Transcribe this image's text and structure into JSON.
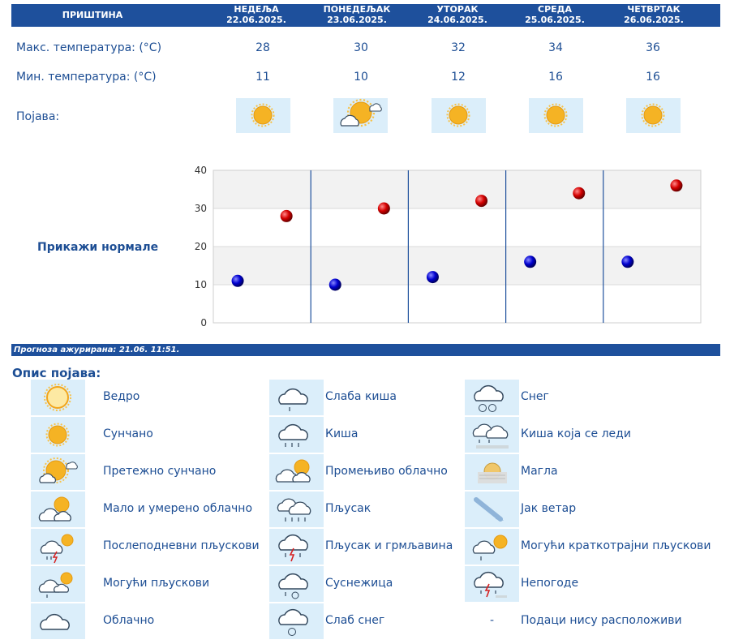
{
  "header": {
    "city": "ПРИШТИНА",
    "days": [
      {
        "name": "НЕДЕЉА",
        "date": "22.06.2025."
      },
      {
        "name": "ПОНЕДЕЉАК",
        "date": "23.06.2025."
      },
      {
        "name": "УТОРАК",
        "date": "24.06.2025."
      },
      {
        "name": "СРЕДА",
        "date": "25.06.2025."
      },
      {
        "name": "ЧЕТВРТАК",
        "date": "26.06.2025."
      }
    ]
  },
  "rows": {
    "max_label": "Макс. температура: (°C)",
    "min_label": "Мин. температура: (°C)",
    "phenomenon_label": "Појава:"
  },
  "forecast": {
    "max": [
      "28",
      "30",
      "32",
      "34",
      "36"
    ],
    "min": [
      "11",
      "10",
      "12",
      "16",
      "16"
    ],
    "icons": [
      "sun-icon",
      "partly-sunny-icon",
      "sun-icon",
      "sun-icon",
      "sun-icon"
    ]
  },
  "show_normals": "Прикажи нормале",
  "updated": "Прогноза ажурирана:  21.06.  11:51.",
  "legend_title": "Опис појава:",
  "legend": [
    [
      {
        "icon": "clear-icon",
        "label": "Ведро"
      },
      {
        "icon": "sunny-icon",
        "label": "Сунчано"
      },
      {
        "icon": "mostly-sunny-icon",
        "label": "Претежно сунчано"
      },
      {
        "icon": "partly-cloudy-icon",
        "label": "Мало и умерено облачно"
      },
      {
        "icon": "afternoon-showers-icon",
        "label": "Послеподневни пљускови"
      },
      {
        "icon": "possible-showers-icon",
        "label": "Могући пљускови"
      },
      {
        "icon": "cloudy-icon",
        "label": "Облачно"
      }
    ],
    [
      {
        "icon": "light-rain-icon",
        "label": "Слаба киша"
      },
      {
        "icon": "rain-icon",
        "label": "Киша"
      },
      {
        "icon": "variable-cloudy-icon",
        "label": "Промењиво облачно"
      },
      {
        "icon": "shower-icon",
        "label": "Пљусак"
      },
      {
        "icon": "thunderstorm-shower-icon",
        "label": "Пљусак и грмљавина"
      },
      {
        "icon": "sleet-icon",
        "label": "Суснежица"
      },
      {
        "icon": "light-snow-icon",
        "label": "Слаб снег"
      }
    ],
    [
      {
        "icon": "snow-icon",
        "label": "Снег"
      },
      {
        "icon": "freezing-rain-icon",
        "label": "Киша која се леди"
      },
      {
        "icon": "fog-icon",
        "label": "Магла"
      },
      {
        "icon": "strong-wind-icon",
        "label": "Јак ветар"
      },
      {
        "icon": "possible-short-showers-icon",
        "label": "Могући краткотрајни пљускови"
      },
      {
        "icon": "storm-icon",
        "label": "Непогоде"
      },
      {
        "icon": "no-data",
        "label": "Подаци нису расположиви",
        "symbol": "-"
      }
    ]
  ],
  "chart_data": {
    "type": "scatter",
    "categories": [
      "22.06.2025.",
      "23.06.2025.",
      "24.06.2025.",
      "25.06.2025.",
      "26.06.2025."
    ],
    "series": [
      {
        "values": [
          28,
          30,
          32,
          34,
          36
        ],
        "color": "#cc0000"
      },
      {
        "values": [
          11,
          10,
          12,
          16,
          16
        ],
        "color": "#0000cc"
      }
    ],
    "ylim": [
      0,
      40
    ],
    "yticks": [
      0,
      10,
      20,
      30,
      40
    ],
    "grid": true
  }
}
